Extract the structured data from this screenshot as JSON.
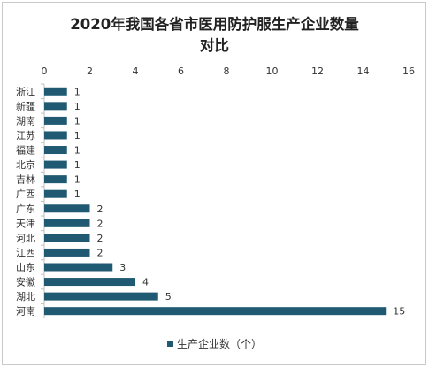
{
  "chart_data": {
    "type": "bar",
    "orientation": "horizontal",
    "title_lines": [
      "2020年我国各省市医用防护服生产企业数量",
      "对比"
    ],
    "categories": [
      "浙江",
      "新疆",
      "湖南",
      "江苏",
      "福建",
      "北京",
      "吉林",
      "广西",
      "广东",
      "天津",
      "河北",
      "江西",
      "山东",
      "安徽",
      "湖北",
      "河南"
    ],
    "series": [
      {
        "name": "生产企业数（个）",
        "values": [
          1,
          1,
          1,
          1,
          1,
          1,
          1,
          1,
          2,
          2,
          2,
          2,
          3,
          4,
          5,
          15
        ],
        "color": "#1f5a72"
      }
    ],
    "x_ticks": [
      0,
      2,
      4,
      6,
      8,
      10,
      12,
      14,
      16
    ],
    "xlim": [
      0,
      16
    ],
    "x_axis_position": "top",
    "grid": false,
    "data_labels": true,
    "legend_position": "bottom"
  }
}
